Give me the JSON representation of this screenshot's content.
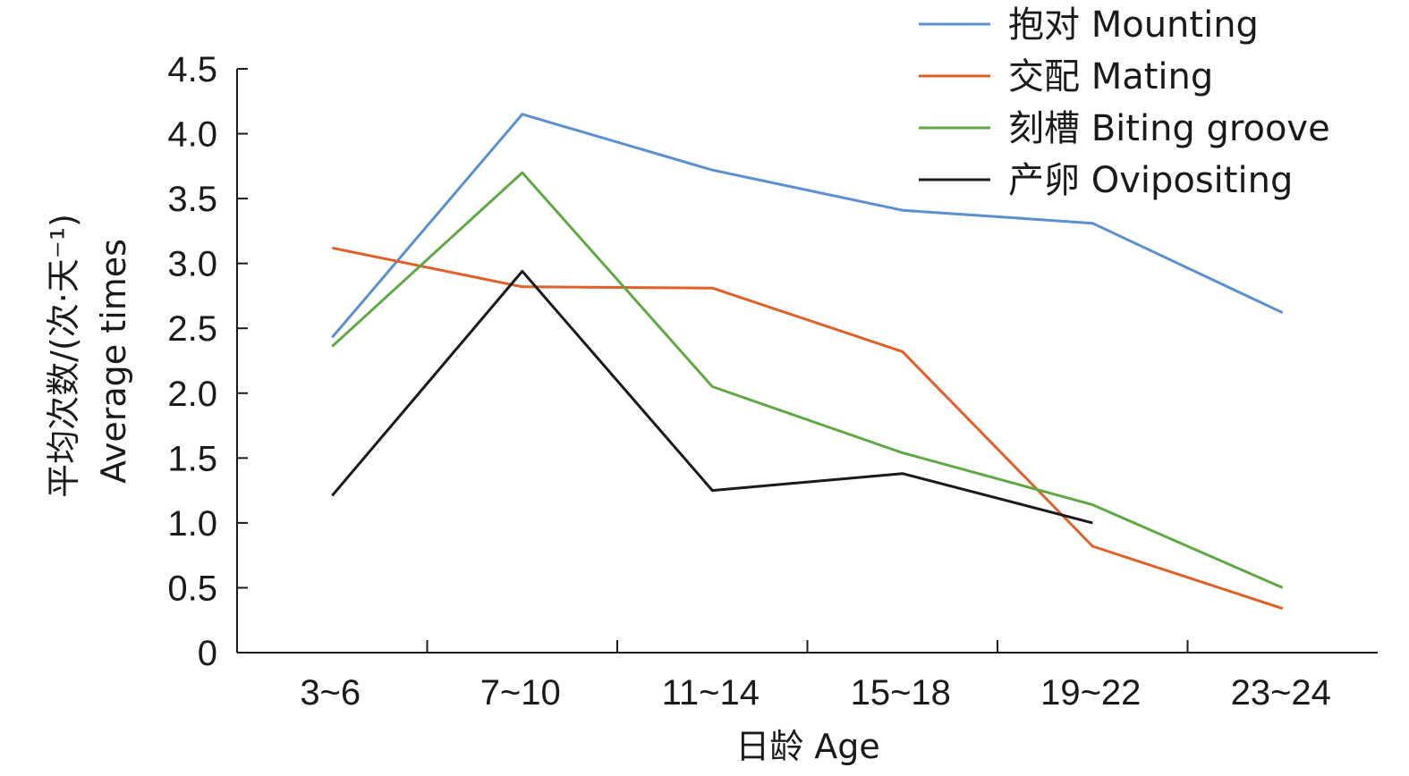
{
  "chart_data": {
    "type": "line",
    "categories": [
      "3~6",
      "7~10",
      "11~14",
      "15~18",
      "19~22",
      "23~24"
    ],
    "xlabel": "日龄 Age",
    "ylabel_line1": "平均次数/(次·天⁻¹)",
    "ylabel_line2": "Average times",
    "ylim": [
      0,
      4.5
    ],
    "yticks": [
      "0",
      "0.5",
      "1.0",
      "1.5",
      "2.0",
      "2.5",
      "3.0",
      "3.5",
      "4.0",
      "4.5"
    ],
    "grid": false,
    "legend_position": "top-right",
    "series": [
      {
        "name": "抱对 Mounting",
        "color": "#5b8fcf",
        "values": [
          2.43,
          4.15,
          3.72,
          3.41,
          3.31,
          2.62
        ]
      },
      {
        "name": "交配 Mating",
        "color": "#e0602a",
        "values": [
          3.12,
          2.82,
          2.81,
          2.32,
          0.82,
          0.34
        ]
      },
      {
        "name": "刻槽 Biting groove",
        "color": "#5fa843",
        "values": [
          2.36,
          3.7,
          2.05,
          1.54,
          1.14,
          0.5
        ]
      },
      {
        "name": "产卵 Ovipositing",
        "color": "#1a1a1a",
        "values": [
          1.21,
          2.94,
          1.25,
          1.38,
          1.0,
          null
        ]
      }
    ]
  }
}
